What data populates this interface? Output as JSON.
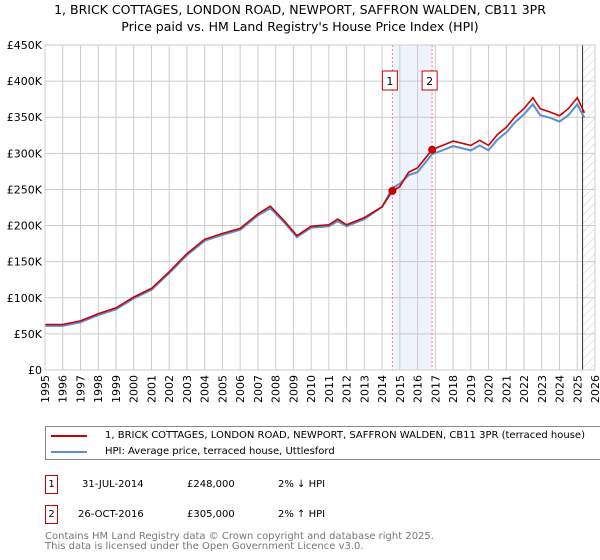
{
  "chart_data": {
    "type": "line",
    "title": "1, BRICK COTTAGES, LONDON ROAD, NEWPORT, SAFFRON WALDEN, CB11 3PR",
    "subtitle": "Price paid vs. HM Land Registry's House Price Index (HPI)",
    "xlim": [
      1995,
      2026
    ],
    "ylim": [
      0,
      450000
    ],
    "x_ticks": [
      "1995",
      "1996",
      "1997",
      "1998",
      "1999",
      "2000",
      "2001",
      "2002",
      "2003",
      "2004",
      "2005",
      "2006",
      "2007",
      "2008",
      "2009",
      "2010",
      "2011",
      "2012",
      "2013",
      "2014",
      "2015",
      "2016",
      "2017",
      "2018",
      "2019",
      "2020",
      "2021",
      "2022",
      "2023",
      "2024",
      "2025",
      "2026"
    ],
    "y_ticks": [
      {
        "v": 0,
        "label": "£0"
      },
      {
        "v": 50000,
        "label": "£50K"
      },
      {
        "v": 100000,
        "label": "£100K"
      },
      {
        "v": 150000,
        "label": "£150K"
      },
      {
        "v": 200000,
        "label": "£200K"
      },
      {
        "v": 250000,
        "label": "£250K"
      },
      {
        "v": 300000,
        "label": "£300K"
      },
      {
        "v": 350000,
        "label": "£350K"
      },
      {
        "v": 400000,
        "label": "£400K"
      },
      {
        "v": 450000,
        "label": "£450K"
      }
    ],
    "grid": true,
    "series": [
      {
        "name": "1, BRICK COTTAGES, LONDON ROAD, NEWPORT, SAFFRON WALDEN, CB11 3PR (terraced house)",
        "color": "#cc0000",
        "x": [
          1995,
          1996,
          1997,
          1998,
          1999,
          2000,
          2001,
          2002,
          2003,
          2004,
          2005,
          2006,
          2007,
          2007.7,
          2008.5,
          2009.2,
          2010,
          2011,
          2011.5,
          2012,
          2013,
          2014,
          2014.58,
          2015,
          2015.5,
          2016,
          2016.82,
          2017.5,
          2018,
          2019,
          2019.5,
          2020,
          2020.5,
          2021,
          2021.5,
          2022,
          2022.5,
          2022.9,
          2023.5,
          2024,
          2024.5,
          2025,
          2025.4
        ],
        "y": [
          63000,
          63000,
          68000,
          78000,
          86000,
          101000,
          113000,
          136000,
          161000,
          181000,
          189000,
          196000,
          216000,
          227000,
          206000,
          186000,
          199000,
          201000,
          209000,
          201000,
          211000,
          226000,
          248000,
          254000,
          274000,
          280000,
          305000,
          312000,
          317000,
          311000,
          318000,
          311000,
          326000,
          336000,
          351000,
          362000,
          377000,
          362000,
          357000,
          352000,
          362000,
          377000,
          356000
        ]
      },
      {
        "name": "HPI: Average price, terraced house, Uttlesford",
        "color": "#5b8fd0",
        "x": [
          1995,
          1996,
          1997,
          1998,
          1999,
          2000,
          2001,
          2002,
          2003,
          2004,
          2005,
          2006,
          2007,
          2007.7,
          2008.5,
          2009.2,
          2010,
          2011,
          2011.5,
          2012,
          2013,
          2014,
          2014.58,
          2015,
          2015.5,
          2016,
          2016.82,
          2017.5,
          2018,
          2019,
          2019.5,
          2020,
          2020.5,
          2021,
          2021.5,
          2022,
          2022.5,
          2022.9,
          2023.5,
          2024,
          2024.5,
          2025,
          2025.4
        ],
        "y": [
          61000,
          61000,
          66000,
          76000,
          84000,
          99000,
          111000,
          134000,
          159000,
          179000,
          187000,
          194000,
          214000,
          224000,
          204000,
          184000,
          197000,
          199000,
          206000,
          199000,
          209000,
          226000,
          252000,
          258000,
          270000,
          274000,
          299000,
          305000,
          310000,
          304000,
          311000,
          304000,
          319000,
          329000,
          343000,
          354000,
          368000,
          353000,
          349000,
          344000,
          353000,
          368000,
          349000
        ]
      }
    ],
    "sales": [
      {
        "n": "1",
        "x": 2014.58,
        "y": 248000
      },
      {
        "n": "2",
        "x": 2016.82,
        "y": 305000
      }
    ],
    "forecast_start": 2025.3
  },
  "legend": {
    "red": "1, BRICK COTTAGES, LONDON ROAD, NEWPORT, SAFFRON WALDEN, CB11 3PR (terraced house)",
    "blue": "HPI: Average price, terraced house, Uttlesford"
  },
  "sales_table": [
    {
      "n": "1",
      "date": "31-JUL-2014",
      "price": "£248,000",
      "hpi": "2% ↓ HPI"
    },
    {
      "n": "2",
      "date": "26-OCT-2016",
      "price": "£305,000",
      "hpi": "2% ↑ HPI"
    }
  ],
  "footer": {
    "line1": "Contains HM Land Registry data © Crown copyright and database right 2025.",
    "line2": "This data is licensed under the Open Government Licence v3.0."
  }
}
